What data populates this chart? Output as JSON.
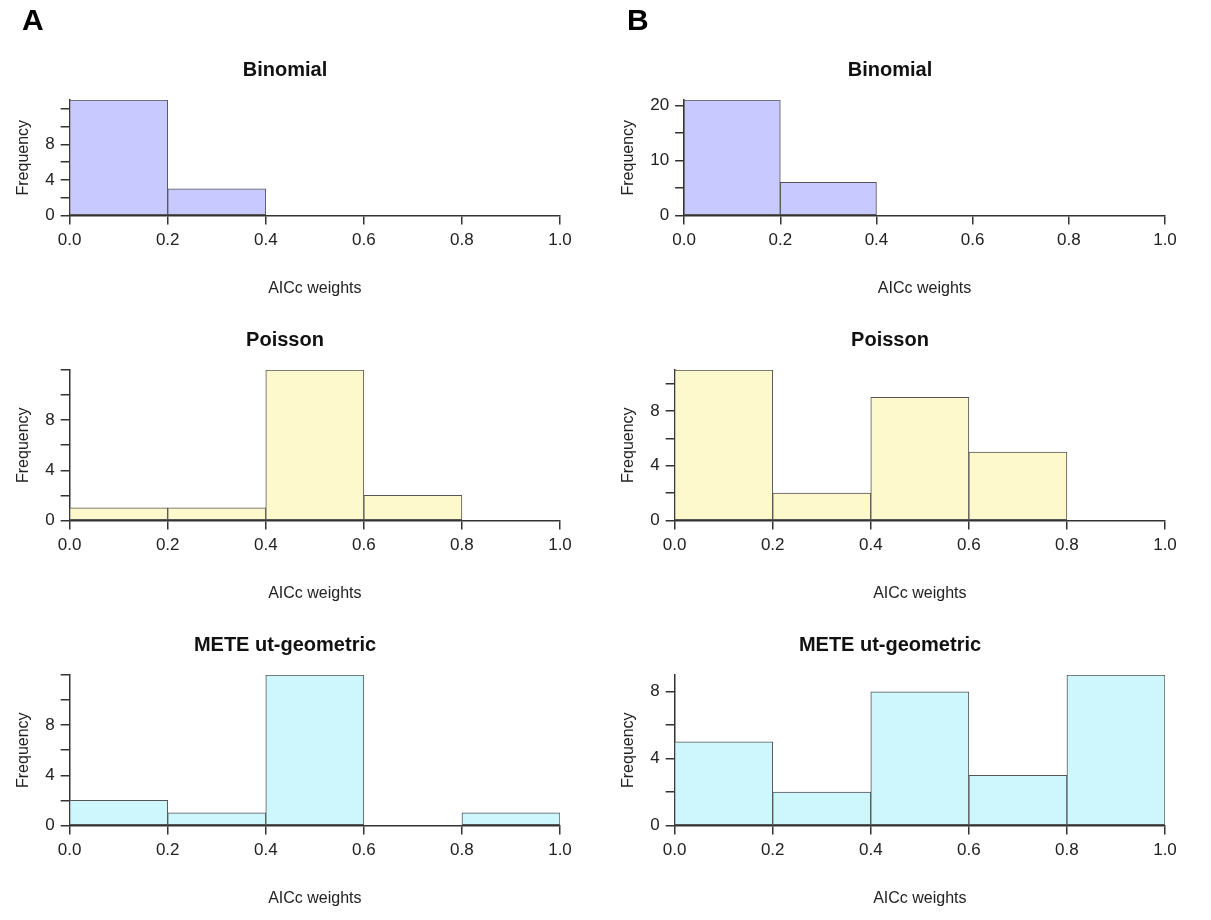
{
  "chart_data": [
    {
      "type": "histogram",
      "title": "Binomial",
      "xlabel": "AICc weights",
      "ylabel": "Frequency",
      "annotations": [
        "A"
      ],
      "color": "#c8caff",
      "bins": [
        0,
        0.2,
        0.4,
        0.6,
        0.8,
        1.0
      ],
      "values": [
        13,
        3,
        0,
        0,
        0
      ],
      "xlim": [
        0,
        1
      ],
      "xticks": [
        {
          "value": 0,
          "label": "0.0"
        },
        {
          "value": 0.2,
          "label": "0.2"
        },
        {
          "value": 0.4,
          "label": "0.4"
        },
        {
          "value": 0.6,
          "label": "0.6"
        },
        {
          "value": 0.8,
          "label": "0.8"
        },
        {
          "value": 1,
          "label": "1.0"
        }
      ],
      "ylim": [
        0,
        13
      ],
      "yticks": [
        0,
        {
          "value": 2,
          "label": null
        },
        4,
        {
          "value": 6,
          "label": null
        },
        8,
        {
          "value": 10,
          "label": null
        },
        {
          "value": 12,
          "label": null
        }
      ]
    },
    {
      "type": "histogram",
      "title": "Binomial",
      "xlabel": "AICc weights",
      "ylabel": "Frequency",
      "annotations": [
        "B"
      ],
      "color": "#c8caff",
      "bins": [
        0,
        0.2,
        0.4,
        0.6,
        0.8,
        1.0
      ],
      "values": [
        21,
        6,
        0,
        0,
        0
      ],
      "xlim": [
        0,
        1
      ],
      "xticks": [
        {
          "value": 0,
          "label": "0.0"
        },
        {
          "value": 0.2,
          "label": "0.2"
        },
        {
          "value": 0.4,
          "label": "0.4"
        },
        {
          "value": 0.6,
          "label": "0.6"
        },
        {
          "value": 0.8,
          "label": "0.8"
        },
        {
          "value": 1,
          "label": "1.0"
        }
      ],
      "ylim": [
        0,
        21
      ],
      "yticks": [
        0,
        {
          "value": 5,
          "label": null
        },
        10,
        {
          "value": 15,
          "label": null
        },
        20
      ]
    },
    {
      "type": "histogram",
      "title": "Poisson",
      "xlabel": "AICc weights",
      "ylabel": "Frequency",
      "color": "#fdf9cc",
      "bins": [
        0,
        0.2,
        0.4,
        0.6,
        0.8,
        1.0
      ],
      "values": [
        1,
        1,
        12,
        2,
        0
      ],
      "xlim": [
        0,
        1
      ],
      "xticks": [
        {
          "value": 0,
          "label": "0.0"
        },
        {
          "value": 0.2,
          "label": "0.2"
        },
        {
          "value": 0.4,
          "label": "0.4"
        },
        {
          "value": 0.6,
          "label": "0.6"
        },
        {
          "value": 0.8,
          "label": "0.8"
        },
        {
          "value": 1,
          "label": "1.0"
        }
      ],
      "ylim": [
        0,
        12
      ],
      "yticks": [
        0,
        {
          "value": 2,
          "label": null
        },
        4,
        {
          "value": 6,
          "label": null
        },
        8,
        {
          "value": 10,
          "label": null
        },
        {
          "value": 12,
          "label": null
        }
      ]
    },
    {
      "type": "histogram",
      "title": "Poisson",
      "xlabel": "AICc weights",
      "ylabel": "Frequency",
      "color": "#fdf9cc",
      "bins": [
        0,
        0.2,
        0.4,
        0.6,
        0.8,
        1.0
      ],
      "values": [
        11,
        2,
        9,
        5,
        0
      ],
      "xlim": [
        0,
        1
      ],
      "xticks": [
        {
          "value": 0,
          "label": "0.0"
        },
        {
          "value": 0.2,
          "label": "0.2"
        },
        {
          "value": 0.4,
          "label": "0.4"
        },
        {
          "value": 0.6,
          "label": "0.6"
        },
        {
          "value": 0.8,
          "label": "0.8"
        },
        {
          "value": 1,
          "label": "1.0"
        }
      ],
      "ylim": [
        0,
        11
      ],
      "yticks": [
        0,
        {
          "value": 2,
          "label": null
        },
        4,
        {
          "value": 6,
          "label": null
        },
        8,
        {
          "value": 10,
          "label": null
        }
      ]
    },
    {
      "type": "histogram",
      "title": "METE ut-geometric",
      "xlabel": "AICc weights",
      "ylabel": "Frequency",
      "color": "#cdf7fd",
      "bins": [
        0,
        0.2,
        0.4,
        0.6,
        0.8,
        1.0
      ],
      "values": [
        2,
        1,
        12,
        0,
        1
      ],
      "xlim": [
        0,
        1
      ],
      "xticks": [
        {
          "value": 0,
          "label": "0.0"
        },
        {
          "value": 0.2,
          "label": "0.2"
        },
        {
          "value": 0.4,
          "label": "0.4"
        },
        {
          "value": 0.6,
          "label": "0.6"
        },
        {
          "value": 0.8,
          "label": "0.8"
        },
        {
          "value": 1,
          "label": "1.0"
        }
      ],
      "ylim": [
        0,
        12
      ],
      "yticks": [
        0,
        {
          "value": 2,
          "label": null
        },
        4,
        {
          "value": 6,
          "label": null
        },
        8,
        {
          "value": 10,
          "label": null
        },
        {
          "value": 12,
          "label": null
        }
      ]
    },
    {
      "type": "histogram",
      "title": "METE ut-geometric",
      "xlabel": "AICc weights",
      "ylabel": "Frequency",
      "color": "#cdf7fd",
      "bins": [
        0,
        0.2,
        0.4,
        0.6,
        0.8,
        1.0
      ],
      "values": [
        5,
        2,
        8,
        3,
        9
      ],
      "xlim": [
        0,
        1
      ],
      "xticks": [
        {
          "value": 0,
          "label": "0.0"
        },
        {
          "value": 0.2,
          "label": "0.2"
        },
        {
          "value": 0.4,
          "label": "0.4"
        },
        {
          "value": 0.6,
          "label": "0.6"
        },
        {
          "value": 0.8,
          "label": "0.8"
        },
        {
          "value": 1,
          "label": "1.0"
        }
      ],
      "ylim": [
        0,
        9
      ],
      "yticks": [
        0,
        {
          "value": 2,
          "label": null
        },
        4,
        {
          "value": 6,
          "label": null
        },
        8
      ]
    }
  ]
}
